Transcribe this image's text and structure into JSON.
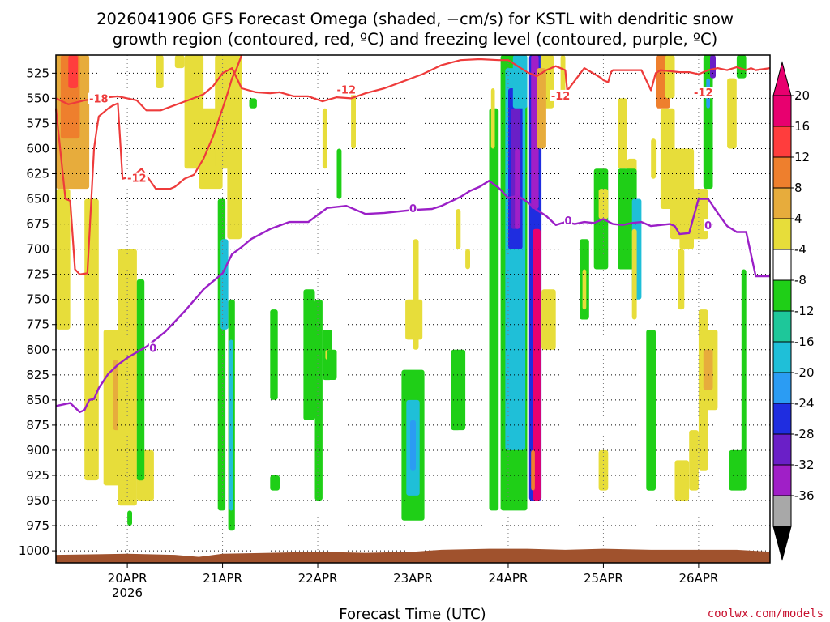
{
  "chart_data": {
    "type": "heatmap",
    "title_line1": "2026041906 GFS Forecast Omega (shaded, −cm/s) for KSTL with dendritic snow",
    "title_line2": "growth region (contoured, red, ºC) and freezing level (contoured, purple, ºC)",
    "xlabel": "Forecast Time (UTC)",
    "credit": "coolwx.com/models",
    "x_ticks": [
      "20APR",
      "21APR",
      "22APR",
      "23APR",
      "24APR",
      "25APR",
      "26APR"
    ],
    "x_year": "2026",
    "x_range_days": [
      -0.75,
      6.75
    ],
    "y_ticks": [
      525,
      550,
      575,
      600,
      625,
      650,
      675,
      700,
      725,
      750,
      775,
      800,
      825,
      850,
      875,
      900,
      925,
      950,
      975,
      1000
    ],
    "y_range_hpa": [
      507,
      1012
    ],
    "colorbar": {
      "labels": [
        "20",
        "16",
        "12",
        "8",
        "4",
        "-4",
        "-8",
        "-12",
        "-16",
        "-20",
        "-24",
        "-28",
        "-32",
        "-36"
      ],
      "bins": [
        {
          "color": "#e8006f"
        },
        {
          "color": "#ff3d3d"
        },
        {
          "color": "#ee7f2d"
        },
        {
          "color": "#e7ac3c"
        },
        {
          "color": "#e7dd3a"
        },
        {
          "color": "#ffffff"
        },
        {
          "color": "#1fcf17"
        },
        {
          "color": "#1ec79a"
        },
        {
          "color": "#1fbfd8"
        },
        {
          "color": "#2b9cf3"
        },
        {
          "color": "#1f2de0"
        },
        {
          "color": "#6a1fc7"
        },
        {
          "color": "#a01fc7"
        },
        {
          "color": "#a8a8a8"
        }
      ],
      "top_arrow_color": "#e8006f",
      "bottom_arrow_color": "#000000"
    },
    "dgz_upper_-18C": {
      "name": "-18",
      "color": "#ee3b3b",
      "x": [
        -0.75,
        -0.62,
        -0.45,
        -0.3,
        -0.1,
        0.1,
        0.2,
        0.35,
        0.55,
        0.75,
        0.8,
        0.9,
        1.0,
        1.1,
        1.2,
        1.35,
        1.5,
        1.6,
        1.75,
        1.9,
        2.05,
        2.2,
        2.35,
        2.5,
        2.7,
        2.9,
        3.1,
        3.3,
        3.5,
        3.7,
        3.9,
        4.0,
        4.1,
        4.2,
        4.3,
        4.4,
        4.5,
        4.6,
        4.62
      ],
      "y": [
        550,
        556,
        552,
        550,
        548,
        552,
        562,
        562,
        555,
        548,
        546,
        538,
        525,
        520,
        540,
        544,
        545,
        544,
        548,
        548,
        553,
        549,
        550,
        545,
        540,
        533,
        526,
        517,
        512,
        511,
        512,
        512,
        518,
        524,
        528,
        522,
        518,
        522,
        542
      ]
    },
    "dgz_lower_-12C": {
      "name": "-12",
      "color": "#ee3b3b",
      "x": [
        -0.75,
        -0.65,
        -0.6,
        -0.55,
        -0.5,
        -0.42,
        -0.35,
        -0.32,
        -0.3,
        -0.2,
        -0.15,
        -0.1,
        -0.05,
        0.05,
        0.15,
        0.3,
        0.45,
        0.5,
        0.6,
        0.7,
        0.8,
        0.9,
        1.0,
        1.05,
        1.1,
        1.15,
        1.2
      ],
      "y": [
        560,
        650,
        652,
        720,
        725,
        724,
        600,
        580,
        568,
        560,
        557,
        555,
        630,
        628,
        620,
        640,
        640,
        638,
        630,
        626,
        610,
        588,
        560,
        546,
        530,
        520,
        507
      ]
    },
    "dgz_right_-12C": {
      "name": "-12",
      "color": "#ee3b3b",
      "x": [
        4.6,
        4.8,
        4.98,
        5.0,
        5.05,
        5.08,
        5.1,
        5.2,
        5.3,
        5.4,
        5.5,
        5.55,
        5.6,
        5.8,
        5.9,
        6.0,
        6.1,
        6.2,
        6.3,
        6.4,
        6.5,
        6.55,
        6.6,
        6.75
      ],
      "y": [
        545,
        520,
        530,
        532,
        534,
        524,
        522,
        522,
        522,
        522,
        542,
        525,
        522,
        524,
        524,
        526,
        522,
        520,
        522,
        519,
        522,
        520,
        522,
        520
      ]
    },
    "freezing_level_0C": {
      "name": "0",
      "color": "#9b1fc7",
      "x": [
        -0.75,
        -0.6,
        -0.5,
        -0.45,
        -0.4,
        -0.35,
        -0.3,
        -0.2,
        -0.1,
        0.0,
        0.2,
        0.4,
        0.6,
        0.8,
        1.0,
        1.1,
        1.2,
        1.3,
        1.5,
        1.7,
        1.9,
        2.0,
        2.1,
        2.3,
        2.5,
        2.7,
        3.0,
        3.2,
        3.3,
        3.5,
        3.6,
        3.7,
        3.8,
        3.9,
        4.0,
        4.1,
        4.2,
        4.3,
        4.4,
        4.5,
        4.6,
        4.7,
        4.8,
        4.9,
        5.0,
        5.1,
        5.2,
        5.3,
        5.4,
        5.5,
        5.6,
        5.7,
        5.75,
        5.8,
        5.9,
        6.0,
        6.1,
        6.2,
        6.3,
        6.4,
        6.5,
        6.6,
        6.75
      ],
      "y": [
        856,
        853,
        862,
        860,
        850,
        849,
        838,
        824,
        815,
        808,
        797,
        782,
        762,
        740,
        724,
        705,
        698,
        690,
        680,
        673,
        673,
        666,
        659,
        657,
        665,
        664,
        661,
        660,
        657,
        648,
        642,
        638,
        632,
        639,
        649,
        647,
        653,
        661,
        667,
        676,
        673,
        675,
        673,
        674,
        670,
        675,
        676,
        674,
        673,
        677,
        676,
        675,
        677,
        685,
        684,
        650,
        650,
        664,
        677,
        683,
        683,
        727,
        727
      ]
    },
    "contour_labels": [
      {
        "text": "-18",
        "x": -0.3,
        "p": 551,
        "color": "#ee3b3b"
      },
      {
        "text": "-12",
        "x": 0.1,
        "p": 630,
        "color": "#ee3b3b"
      },
      {
        "text": "-12",
        "x": 2.3,
        "p": 542,
        "color": "#ee3b3b"
      },
      {
        "text": "-12",
        "x": 4.55,
        "p": 548,
        "color": "#ee3b3b"
      },
      {
        "text": "-12",
        "x": 6.05,
        "p": 545,
        "color": "#ee3b3b"
      },
      {
        "text": "0",
        "x": 0.27,
        "p": 799,
        "color": "#9b1fc7"
      },
      {
        "text": "0",
        "x": 3.0,
        "p": 660,
        "color": "#9b1fc7"
      },
      {
        "text": "0",
        "x": 4.63,
        "p": 672,
        "color": "#9b1fc7"
      },
      {
        "text": "0",
        "x": 6.1,
        "p": 677,
        "color": "#9b1fc7"
      }
    ],
    "omega_cells": [
      {
        "x0": -0.75,
        "x1": -0.4,
        "p0": 507,
        "p1": 640,
        "v": 8
      },
      {
        "x0": -0.7,
        "x1": -0.5,
        "p0": 507,
        "p1": 590,
        "v": 12
      },
      {
        "x0": -0.62,
        "x1": -0.52,
        "p0": 507,
        "p1": 540,
        "v": 16
      },
      {
        "x0": -0.75,
        "x1": -0.6,
        "p0": 640,
        "p1": 780,
        "v": 6
      },
      {
        "x0": -0.45,
        "x1": -0.3,
        "p0": 650,
        "p1": 930,
        "v": 5
      },
      {
        "x0": -0.25,
        "x1": -0.05,
        "p0": 780,
        "p1": 935,
        "v": 5
      },
      {
        "x0": -0.15,
        "x1": 0.0,
        "p0": 810,
        "p1": 880,
        "v": 10
      },
      {
        "x0": -0.1,
        "x1": 0.1,
        "p0": 700,
        "p1": 955,
        "v": 5
      },
      {
        "x0": 0.0,
        "x1": 0.05,
        "p0": 960,
        "p1": 975,
        "v": -6
      },
      {
        "x0": 0.1,
        "x1": 0.28,
        "p0": 900,
        "p1": 950,
        "v": 5
      },
      {
        "x0": 0.1,
        "x1": 0.18,
        "p0": 730,
        "p1": 930,
        "v": -6
      },
      {
        "x0": 0.3,
        "x1": 0.38,
        "p0": 507,
        "p1": 540,
        "v": 5
      },
      {
        "x0": 0.5,
        "x1": 0.6,
        "p0": 507,
        "p1": 520,
        "v": 5
      },
      {
        "x0": 0.6,
        "x1": 0.8,
        "p0": 507,
        "p1": 620,
        "v": 5
      },
      {
        "x0": 0.75,
        "x1": 1.0,
        "p0": 560,
        "p1": 640,
        "v": 6
      },
      {
        "x0": 0.92,
        "x1": 1.08,
        "p0": 507,
        "p1": 620,
        "v": 5
      },
      {
        "x0": 0.95,
        "x1": 1.03,
        "p0": 650,
        "p1": 960,
        "v": -6
      },
      {
        "x0": 0.98,
        "x1": 1.06,
        "p0": 690,
        "p1": 780,
        "v": -12
      },
      {
        "x0": 1.05,
        "x1": 1.2,
        "p0": 507,
        "p1": 690,
        "v": 5
      },
      {
        "x0": 1.06,
        "x1": 1.13,
        "p0": 750,
        "p1": 980,
        "v": -6
      },
      {
        "x0": 1.07,
        "x1": 1.11,
        "p0": 790,
        "p1": 960,
        "v": -12
      },
      {
        "x0": 1.28,
        "x1": 1.36,
        "p0": 550,
        "p1": 560,
        "v": -6
      },
      {
        "x0": 1.5,
        "x1": 1.58,
        "p0": 760,
        "p1": 850,
        "v": -6
      },
      {
        "x0": 1.5,
        "x1": 1.6,
        "p0": 925,
        "p1": 940,
        "v": -6
      },
      {
        "x0": 1.85,
        "x1": 1.97,
        "p0": 740,
        "p1": 870,
        "v": -6
      },
      {
        "x0": 1.97,
        "x1": 2.05,
        "p0": 750,
        "p1": 950,
        "v": -6
      },
      {
        "x0": 2.05,
        "x1": 2.15,
        "p0": 780,
        "p1": 830,
        "v": -6
      },
      {
        "x0": 2.08,
        "x1": 2.16,
        "p0": 800,
        "p1": 810,
        "v": 5
      },
      {
        "x0": 2.1,
        "x1": 2.2,
        "p0": 800,
        "p1": 830,
        "v": -6
      },
      {
        "x0": 2.05,
        "x1": 2.1,
        "p0": 560,
        "p1": 620,
        "v": 5
      },
      {
        "x0": 2.2,
        "x1": 2.25,
        "p0": 600,
        "p1": 650,
        "v": -6
      },
      {
        "x0": 2.35,
        "x1": 2.4,
        "p0": 540,
        "p1": 600,
        "v": 5
      },
      {
        "x0": 3.4,
        "x1": 3.55,
        "p0": 800,
        "p1": 880,
        "v": -6
      },
      {
        "x0": 2.88,
        "x1": 3.12,
        "p0": 820,
        "p1": 970,
        "v": -6
      },
      {
        "x0": 2.93,
        "x1": 3.07,
        "p0": 850,
        "p1": 945,
        "v": -12
      },
      {
        "x0": 2.97,
        "x1": 3.03,
        "p0": 870,
        "p1": 920,
        "v": -16
      },
      {
        "x0": 2.92,
        "x1": 3.1,
        "p0": 750,
        "p1": 790,
        "v": 5
      },
      {
        "x0": 3.0,
        "x1": 3.06,
        "p0": 690,
        "p1": 800,
        "v": 5
      },
      {
        "x0": 3.4,
        "x1": 3.5,
        "p0": 860,
        "p1": 880,
        "v": -6
      },
      {
        "x0": 3.45,
        "x1": 3.5,
        "p0": 660,
        "p1": 700,
        "v": 5
      },
      {
        "x0": 3.55,
        "x1": 3.6,
        "p0": 700,
        "p1": 720,
        "v": 5
      },
      {
        "x0": 3.8,
        "x1": 3.9,
        "p0": 560,
        "p1": 960,
        "v": -6
      },
      {
        "x0": 3.82,
        "x1": 3.86,
        "p0": 540,
        "p1": 600,
        "v": 5
      },
      {
        "x0": 3.92,
        "x1": 4.2,
        "p0": 507,
        "p1": 960,
        "v": -6
      },
      {
        "x0": 3.97,
        "x1": 4.18,
        "p0": 520,
        "p1": 900,
        "v": -12
      },
      {
        "x0": 4.0,
        "x1": 4.15,
        "p0": 540,
        "p1": 700,
        "v": -20
      },
      {
        "x0": 4.03,
        "x1": 4.13,
        "p0": 560,
        "p1": 680,
        "v": -24
      },
      {
        "x0": 4.07,
        "x1": 4.12,
        "p0": 600,
        "p1": 680,
        "v": -28
      },
      {
        "x0": 4.05,
        "x1": 4.2,
        "p0": 507,
        "p1": 560,
        "v": -12
      },
      {
        "x0": 4.22,
        "x1": 4.35,
        "p0": 507,
        "p1": 950,
        "v": -20
      },
      {
        "x0": 4.24,
        "x1": 4.32,
        "p0": 507,
        "p1": 660,
        "v": -28
      },
      {
        "x0": 4.26,
        "x1": 4.34,
        "p0": 680,
        "p1": 950,
        "v": 20
      },
      {
        "x0": 4.24,
        "x1": 4.28,
        "p0": 900,
        "p1": 940,
        "v": 12
      },
      {
        "x0": 4.34,
        "x1": 4.48,
        "p0": 507,
        "p1": 560,
        "v": 5
      },
      {
        "x0": 4.35,
        "x1": 4.5,
        "p0": 740,
        "p1": 800,
        "v": 5
      },
      {
        "x0": 4.3,
        "x1": 4.4,
        "p0": 520,
        "p1": 600,
        "v": 10
      },
      {
        "x0": 4.55,
        "x1": 4.6,
        "p0": 507,
        "p1": 550,
        "v": 5
      },
      {
        "x0": 4.75,
        "x1": 4.85,
        "p0": 690,
        "p1": 770,
        "v": -6
      },
      {
        "x0": 4.78,
        "x1": 4.82,
        "p0": 720,
        "p1": 760,
        "v": 5
      },
      {
        "x0": 4.9,
        "x1": 5.05,
        "p0": 620,
        "p1": 720,
        "v": -6
      },
      {
        "x0": 4.95,
        "x1": 5.05,
        "p0": 640,
        "p1": 670,
        "v": 5
      },
      {
        "x0": 4.95,
        "x1": 5.05,
        "p0": 900,
        "p1": 940,
        "v": 5
      },
      {
        "x0": 5.15,
        "x1": 5.25,
        "p0": 550,
        "p1": 620,
        "v": 5
      },
      {
        "x0": 5.25,
        "x1": 5.35,
        "p0": 610,
        "p1": 700,
        "v": 5
      },
      {
        "x0": 5.15,
        "x1": 5.35,
        "p0": 620,
        "p1": 720,
        "v": -6
      },
      {
        "x0": 5.3,
        "x1": 5.4,
        "p0": 650,
        "p1": 750,
        "v": -12
      },
      {
        "x0": 5.3,
        "x1": 5.35,
        "p0": 680,
        "p1": 770,
        "v": 5
      },
      {
        "x0": 5.45,
        "x1": 5.55,
        "p0": 780,
        "p1": 940,
        "v": -6
      },
      {
        "x0": 5.5,
        "x1": 5.55,
        "p0": 590,
        "p1": 630,
        "v": 5
      },
      {
        "x0": 5.55,
        "x1": 5.7,
        "p0": 507,
        "p1": 560,
        "v": 12
      },
      {
        "x0": 5.6,
        "x1": 5.75,
        "p0": 560,
        "p1": 660,
        "v": 5
      },
      {
        "x0": 5.65,
        "x1": 5.75,
        "p0": 507,
        "p1": 550,
        "v": 5
      },
      {
        "x0": 5.7,
        "x1": 5.95,
        "p0": 600,
        "p1": 690,
        "v": 5
      },
      {
        "x0": 5.78,
        "x1": 5.85,
        "p0": 700,
        "p1": 760,
        "v": 5
      },
      {
        "x0": 5.8,
        "x1": 5.95,
        "p0": 640,
        "p1": 700,
        "v": 5
      },
      {
        "x0": 5.85,
        "x1": 6.1,
        "p0": 640,
        "p1": 690,
        "v": 5
      },
      {
        "x0": 5.75,
        "x1": 5.9,
        "p0": 910,
        "p1": 950,
        "v": 5
      },
      {
        "x0": 5.9,
        "x1": 6.0,
        "p0": 880,
        "p1": 940,
        "v": 5
      },
      {
        "x0": 6.0,
        "x1": 6.1,
        "p0": 760,
        "p1": 920,
        "v": 5
      },
      {
        "x0": 6.05,
        "x1": 6.2,
        "p0": 780,
        "p1": 860,
        "v": 5
      },
      {
        "x0": 6.05,
        "x1": 6.15,
        "p0": 800,
        "p1": 840,
        "v": 10
      },
      {
        "x0": 6.05,
        "x1": 6.15,
        "p0": 507,
        "p1": 640,
        "v": -6
      },
      {
        "x0": 6.08,
        "x1": 6.12,
        "p0": 530,
        "p1": 560,
        "v": -16
      },
      {
        "x0": 6.12,
        "x1": 6.18,
        "p0": 507,
        "p1": 530,
        "v": -24
      },
      {
        "x0": 6.3,
        "x1": 6.4,
        "p0": 530,
        "p1": 600,
        "v": 5
      },
      {
        "x0": 6.4,
        "x1": 6.5,
        "p0": 507,
        "p1": 530,
        "v": -6
      },
      {
        "x0": 6.45,
        "x1": 6.5,
        "p0": 720,
        "p1": 940,
        "v": -6
      },
      {
        "x0": 6.32,
        "x1": 6.48,
        "p0": 900,
        "p1": 940,
        "v": -6
      }
    ],
    "ground_surface_hpa": [
      {
        "x": -0.75,
        "p": 1004
      },
      {
        "x": 0.0,
        "p": 1003
      },
      {
        "x": 0.5,
        "p": 1004
      },
      {
        "x": 0.75,
        "p": 1006
      },
      {
        "x": 1.0,
        "p": 1003
      },
      {
        "x": 1.5,
        "p": 1002
      },
      {
        "x": 2.0,
        "p": 1001
      },
      {
        "x": 2.5,
        "p": 1002
      },
      {
        "x": 3.0,
        "p": 1001
      },
      {
        "x": 3.3,
        "p": 999
      },
      {
        "x": 3.8,
        "p": 998
      },
      {
        "x": 4.2,
        "p": 998
      },
      {
        "x": 4.6,
        "p": 999
      },
      {
        "x": 5.0,
        "p": 998
      },
      {
        "x": 5.5,
        "p": 999
      },
      {
        "x": 6.0,
        "p": 999
      },
      {
        "x": 6.4,
        "p": 999
      },
      {
        "x": 6.75,
        "p": 1001
      }
    ],
    "ground_color": "#a0522d"
  }
}
